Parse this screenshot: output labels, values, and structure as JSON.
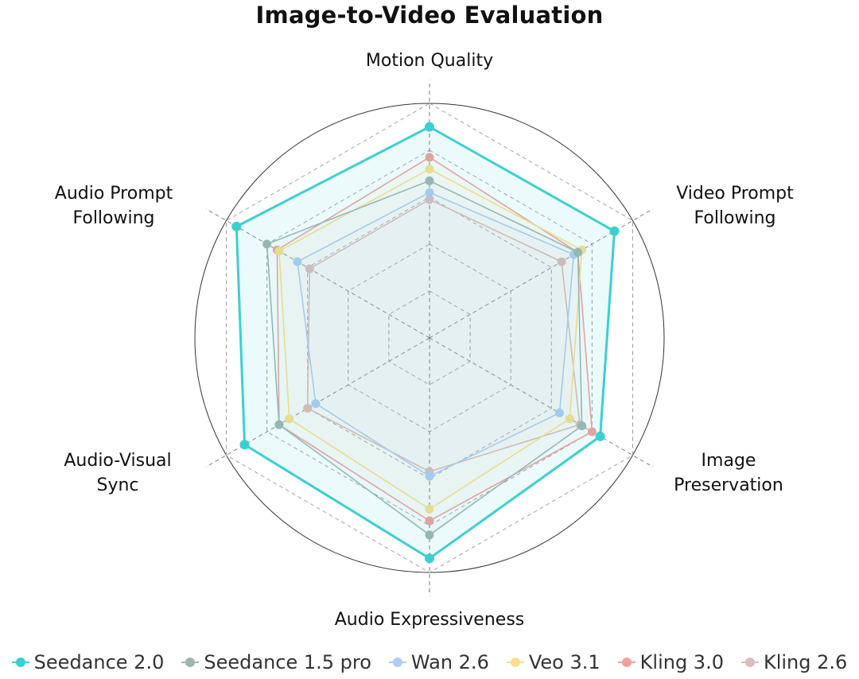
{
  "chart_data": {
    "type": "radar",
    "title": "Image-to-Video Evaluation",
    "axes": [
      "Motion Quality",
      "Video Prompt Following",
      "Image Preservation",
      "Audio Expressiveness",
      "Audio-Visual Sync",
      "Audio Prompt Following"
    ],
    "rlim": [
      0,
      1
    ],
    "rings": 5,
    "grid": true,
    "legend_position": "bottom",
    "series": [
      {
        "name": "Seedance 2.0",
        "color": "#3dcfd0",
        "values": [
          0.9,
          0.91,
          0.84,
          0.94,
          0.91,
          0.95
        ]
      },
      {
        "name": "Seedance 1.5 pro",
        "color": "#9fb5b3",
        "values": [
          0.67,
          0.73,
          0.75,
          0.84,
          0.74,
          0.8
        ]
      },
      {
        "name": "Wan 2.6",
        "color": "#b0cdf2",
        "values": [
          0.62,
          0.71,
          0.64,
          0.59,
          0.56,
          0.65
        ]
      },
      {
        "name": "Veo 3.1",
        "color": "#fbe08c",
        "values": [
          0.72,
          0.75,
          0.69,
          0.73,
          0.69,
          0.74
        ]
      },
      {
        "name": "Kling 3.0",
        "color": "#f2a09c",
        "values": [
          0.77,
          0.73,
          0.8,
          0.78,
          0.74,
          0.75
        ]
      },
      {
        "name": "Kling 2.6",
        "color": "#dcbcbc",
        "values": [
          0.59,
          0.65,
          0.74,
          0.57,
          0.6,
          0.59
        ]
      }
    ]
  }
}
